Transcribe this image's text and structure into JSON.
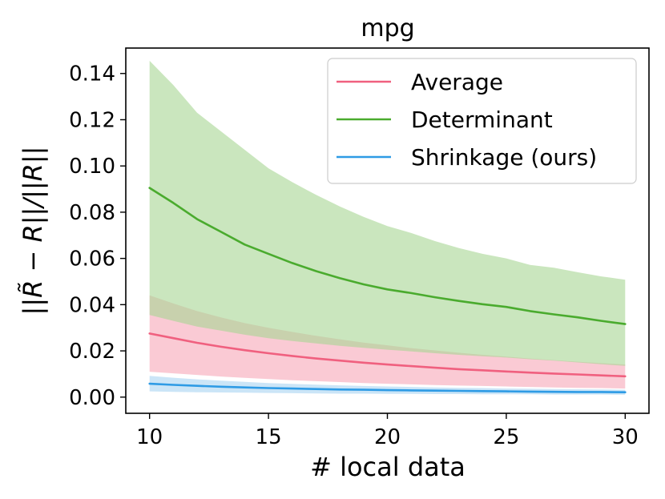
{
  "chart_data": {
    "type": "line",
    "title": "mpg",
    "xlabel": "# local data",
    "ylabel": "||R̃ − R||/||R||",
    "xlim": [
      9.0,
      31.0
    ],
    "ylim": [
      -0.007,
      0.151
    ],
    "xticks": [
      10,
      15,
      20,
      25,
      30
    ],
    "yticks": [
      0.0,
      0.02,
      0.04,
      0.06,
      0.08,
      0.1,
      0.12,
      0.14
    ],
    "xtick_labels": [
      "10",
      "15",
      "20",
      "25",
      "30"
    ],
    "ytick_labels": [
      "0.00",
      "0.02",
      "0.04",
      "0.06",
      "0.08",
      "0.10",
      "0.12",
      "0.14"
    ],
    "legend_position": "top-right",
    "x": [
      10,
      11,
      12,
      13,
      14,
      15,
      16,
      17,
      18,
      19,
      20,
      21,
      22,
      23,
      24,
      25,
      26,
      27,
      28,
      29,
      30
    ],
    "series": [
      {
        "name": "Average",
        "color": "#f0607f",
        "fill": "#f7a6b7",
        "mean": [
          0.0275,
          0.0255,
          0.0235,
          0.0218,
          0.0203,
          0.019,
          0.0178,
          0.0167,
          0.0158,
          0.0149,
          0.0141,
          0.0134,
          0.0127,
          0.0121,
          0.0116,
          0.0111,
          0.0106,
          0.0102,
          0.0098,
          0.0094,
          0.009
        ],
        "lower": [
          0.011,
          0.0103,
          0.0096,
          0.0089,
          0.0083,
          0.0078,
          0.0073,
          0.0069,
          0.0065,
          0.0061,
          0.0058,
          0.0055,
          0.0052,
          0.005,
          0.0048,
          0.0046,
          0.0044,
          0.0042,
          0.004,
          0.0039,
          0.0037
        ],
        "upper": [
          0.044,
          0.0405,
          0.0372,
          0.0345,
          0.032,
          0.03,
          0.0282,
          0.0265,
          0.025,
          0.0236,
          0.0224,
          0.0212,
          0.0202,
          0.0192,
          0.0183,
          0.0175,
          0.0167,
          0.016,
          0.0153,
          0.0147,
          0.0141
        ]
      },
      {
        "name": "Determinant",
        "color": "#4aab2e",
        "fill": "#a7d692",
        "mean": [
          0.0905,
          0.084,
          0.077,
          0.0715,
          0.066,
          0.062,
          0.058,
          0.0545,
          0.0515,
          0.0488,
          0.0466,
          0.045,
          0.0432,
          0.0416,
          0.0402,
          0.039,
          0.0372,
          0.0358,
          0.0345,
          0.033,
          0.0316
        ],
        "lower": [
          0.0355,
          0.033,
          0.0305,
          0.0288,
          0.027,
          0.0255,
          0.0243,
          0.0232,
          0.0222,
          0.0213,
          0.0205,
          0.0198,
          0.019,
          0.0183,
          0.0177,
          0.0171,
          0.0164,
          0.0158,
          0.015,
          0.0142,
          0.0135
        ],
        "upper": [
          0.1455,
          0.135,
          0.123,
          0.115,
          0.107,
          0.099,
          0.093,
          0.0875,
          0.0825,
          0.078,
          0.074,
          0.071,
          0.0675,
          0.0645,
          0.062,
          0.06,
          0.0572,
          0.056,
          0.054,
          0.0522,
          0.0508
        ]
      },
      {
        "name": "Shrinkage (ours)",
        "color": "#2e9be5",
        "fill": "#a8d3f2",
        "mean": [
          0.0058,
          0.0053,
          0.0049,
          0.0045,
          0.0042,
          0.0039,
          0.0037,
          0.0035,
          0.0033,
          0.0032,
          0.003,
          0.0029,
          0.0028,
          0.0027,
          0.0026,
          0.0025,
          0.0024,
          0.0023,
          0.0022,
          0.0022,
          0.0021
        ],
        "lower": [
          0.0025,
          0.0023,
          0.0021,
          0.002,
          0.0019,
          0.0018,
          0.0017,
          0.0016,
          0.0015,
          0.0015,
          0.0014,
          0.0014,
          0.0013,
          0.0013,
          0.0012,
          0.0012,
          0.0012,
          0.0011,
          0.0011,
          0.0011,
          0.001
        ],
        "upper": [
          0.0092,
          0.0084,
          0.0077,
          0.0071,
          0.0066,
          0.0061,
          0.0057,
          0.0054,
          0.0051,
          0.0048,
          0.0046,
          0.0044,
          0.0042,
          0.004,
          0.0039,
          0.0037,
          0.0036,
          0.0035,
          0.0034,
          0.0033,
          0.0032
        ]
      }
    ]
  }
}
